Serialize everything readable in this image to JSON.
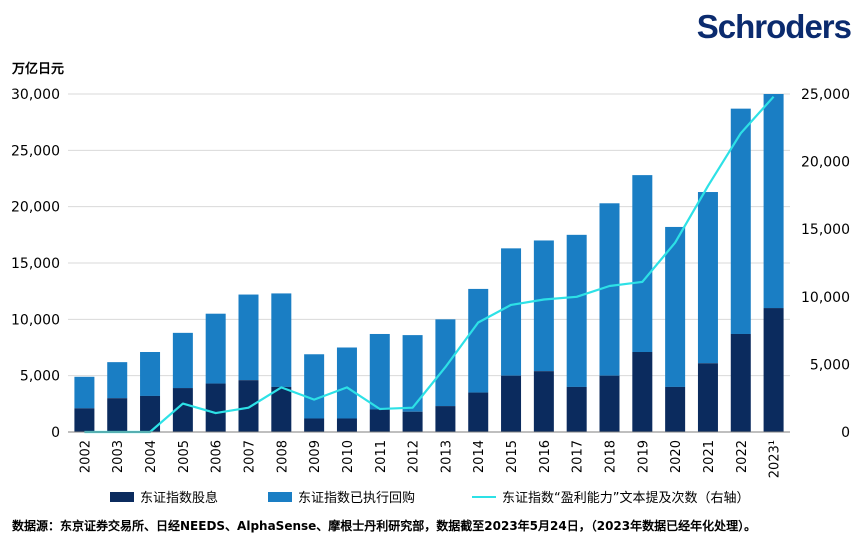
{
  "brand": {
    "logo_text": "Schroders"
  },
  "colors": {
    "dividend": "#0b2b5e",
    "buyback": "#1a7ec4",
    "line": "#2de1e6",
    "grid": "#d9d9d9",
    "logo": "#0b2b6e"
  },
  "chart_data": {
    "type": "bar",
    "stacked": true,
    "y_unit_label": "万亿日元",
    "categories": [
      "2002",
      "2003",
      "2004",
      "2005",
      "2006",
      "2007",
      "2008",
      "2009",
      "2010",
      "2011",
      "2012",
      "2013",
      "2014",
      "2015",
      "2016",
      "2017",
      "2018",
      "2019",
      "2020",
      "2021",
      "2022",
      "2023¹"
    ],
    "series": [
      {
        "name": "东证指数股息",
        "axis": "left",
        "kind": "bar",
        "values": [
          2100,
          3000,
          3200,
          3900,
          4300,
          4600,
          4000,
          1200,
          1200,
          2000,
          1800,
          2300,
          3500,
          5000,
          5400,
          4000,
          5000,
          7100,
          4000,
          6100,
          8700,
          11000
        ]
      },
      {
        "name": "东证指数已执行回购",
        "axis": "left",
        "kind": "bar",
        "values": [
          2800,
          3200,
          3900,
          4900,
          6200,
          7600,
          8300,
          5700,
          6300,
          6700,
          6800,
          7700,
          9200,
          11300,
          11600,
          13500,
          15300,
          15700,
          14200,
          15200,
          20000,
          19000
        ]
      },
      {
        "name": "东证指数“盈利能力”文本提及次数（右轴）",
        "axis": "right",
        "kind": "line",
        "values": [
          0,
          0,
          0,
          2100,
          1400,
          1800,
          3300,
          2400,
          3300,
          1700,
          1800,
          4800,
          8100,
          9400,
          9800,
          10000,
          10800,
          11100,
          14000,
          18200,
          22100,
          24800
        ]
      }
    ],
    "y_left": {
      "min": 0,
      "max": 30000,
      "ticks": [
        "0",
        "5,000",
        "10,000",
        "15,000",
        "20,000",
        "25,000",
        "30,000"
      ]
    },
    "y_right": {
      "min": 0,
      "max": 25000,
      "ticks": [
        "0",
        "5,000",
        "10,000",
        "15,000",
        "20,000",
        "25,000"
      ]
    },
    "grid": true,
    "legend_position": "bottom"
  },
  "source_note": "数据源：东京证券交易所、日经NEEDS、AlphaSense、摩根士丹利研究部，数据截至2023年5月24日，（2023年数据已经年化处理）。"
}
